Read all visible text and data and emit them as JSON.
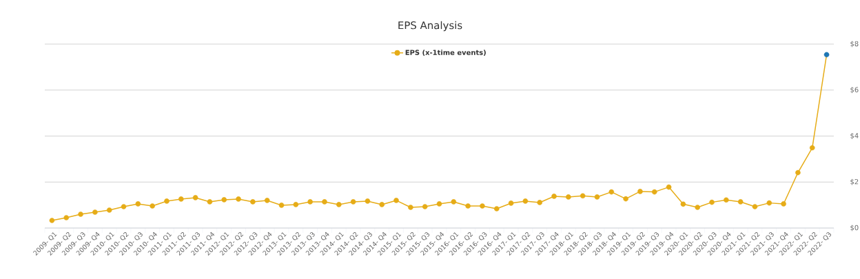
{
  "chart_data": {
    "type": "line",
    "title": "EPS Analysis",
    "categories": [
      "2009- Q1",
      "2009- Q2",
      "2009- Q3",
      "2009- Q4",
      "2010- Q1",
      "2010- Q2",
      "2010- Q3",
      "2010- Q4",
      "2011- Q1",
      "2011- Q2",
      "2011- Q3",
      "2011- Q4",
      "2012- Q1",
      "2012- Q2",
      "2012- Q3",
      "2012- Q4",
      "2013- Q1",
      "2013- Q2",
      "2013- Q3",
      "2013- Q4",
      "2014- Q1",
      "2014- Q2",
      "2014- Q3",
      "2014- Q4",
      "2015- Q1",
      "2015- Q2",
      "2015- Q3",
      "2015- Q4",
      "2016- Q1",
      "2016- Q2",
      "2016- Q3",
      "2016- Q4",
      "2017- Q1",
      "2017- Q2",
      "2017- Q3",
      "2017- Q4",
      "2018- Q1",
      "2018- Q2",
      "2018- Q3",
      "2018- Q4",
      "2019- Q1",
      "2019- Q2",
      "2019- Q3",
      "2019- Q4",
      "2020- Q1",
      "2020- Q2",
      "2020- Q3",
      "2020- Q4",
      "2021- Q1",
      "2021- Q2",
      "2021- Q3",
      "2021- Q4",
      "2022- Q1",
      "2022- Q2",
      "2022- Q3"
    ],
    "series": [
      {
        "name": "EPS (x-1time events)",
        "color": "#e6ac17",
        "values": [
          0.33,
          0.45,
          0.6,
          0.69,
          0.78,
          0.93,
          1.05,
          0.96,
          1.17,
          1.26,
          1.32,
          1.14,
          1.23,
          1.26,
          1.14,
          1.2,
          0.99,
          1.02,
          1.14,
          1.14,
          1.02,
          1.14,
          1.17,
          1.02,
          1.2,
          0.9,
          0.93,
          1.05,
          1.14,
          0.96,
          0.96,
          0.84,
          1.08,
          1.17,
          1.11,
          1.38,
          1.35,
          1.4,
          1.35,
          1.57,
          1.27,
          1.59,
          1.57,
          1.78,
          1.04,
          0.9,
          1.12,
          1.22,
          1.14,
          0.93,
          1.09,
          1.05,
          2.41,
          3.49,
          7.54
        ],
        "colors": [
          "#e6ac17",
          "#e6ac17",
          "#e6ac17",
          "#e6ac17",
          "#e6ac17",
          "#e6ac17",
          "#e6ac17",
          "#e6ac17",
          "#e6ac17",
          "#e6ac17",
          "#e6ac17",
          "#e6ac17",
          "#e6ac17",
          "#e6ac17",
          "#e6ac17",
          "#e6ac17",
          "#e6ac17",
          "#e6ac17",
          "#e6ac17",
          "#e6ac17",
          "#e6ac17",
          "#e6ac17",
          "#e6ac17",
          "#e6ac17",
          "#e6ac17",
          "#e6ac17",
          "#e6ac17",
          "#e6ac17",
          "#e6ac17",
          "#e6ac17",
          "#e6ac17",
          "#e6ac17",
          "#e6ac17",
          "#e6ac17",
          "#e6ac17",
          "#e6ac17",
          "#e6ac17",
          "#e6ac17",
          "#e6ac17",
          "#e6ac17",
          "#e6ac17",
          "#e6ac17",
          "#e6ac17",
          "#e6ac17",
          "#e6ac17",
          "#e6ac17",
          "#e6ac17",
          "#e6ac17",
          "#e6ac17",
          "#e6ac17",
          "#e6ac17",
          "#e6ac17",
          "#e6ac17",
          "#e6ac17",
          "#1f77b4"
        ]
      }
    ],
    "ylim": [
      0,
      8
    ],
    "yticks": [
      {
        "value": 0,
        "label": "$0"
      },
      {
        "value": 2,
        "label": "$2"
      },
      {
        "value": 4,
        "label": "$4"
      },
      {
        "value": 6,
        "label": "$6"
      },
      {
        "value": 8,
        "label": "$8"
      }
    ],
    "grid": "y",
    "legend": "top",
    "marker": "circle",
    "line_style": "solid"
  }
}
